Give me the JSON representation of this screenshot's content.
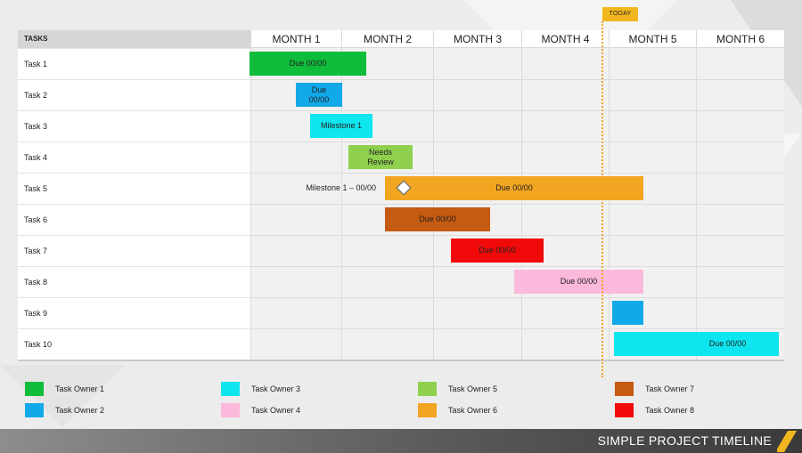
{
  "today_label": "TODAY",
  "header": {
    "tasks_label": "TASKS",
    "months": [
      "MONTH 1",
      "MONTH 2",
      "MONTH 3",
      "MONTH 4",
      "MONTH 5",
      "MONTH 6"
    ]
  },
  "tasks": [
    "Task 1",
    "Task 2",
    "Task 3",
    "Task 4",
    "Task 5",
    "Task 6",
    "Task 7",
    "Task 8",
    "Task 9",
    "Task 10"
  ],
  "bars": [
    {
      "task": "Task 1",
      "label": "Due 00/00",
      "color": "#0fbd3a"
    },
    {
      "task": "Task 2",
      "label": "Due 00/00",
      "color": "#12a9e9"
    },
    {
      "task": "Task 3",
      "label": "Milestone 1",
      "color": "#0ee5ee"
    },
    {
      "task": "Task 4",
      "label": "Needs Review",
      "color": "#8fd14f"
    },
    {
      "task": "Task 5",
      "label": "Due 00/00",
      "color": "#f2a521"
    },
    {
      "task": "Task 6",
      "label": "Due 00/00",
      "color": "#c55a11"
    },
    {
      "task": "Task 7",
      "label": "Due 00/00",
      "color": "#f00a0a"
    },
    {
      "task": "Task 8",
      "label": "Due 00/00",
      "color": "#fbb9dc"
    },
    {
      "task": "Task 9",
      "label": "",
      "color": "#12a9e9"
    },
    {
      "task": "Task 10",
      "label": "Due 00/00",
      "color": "#0ee5ee"
    }
  ],
  "milestone_label": "Milestone 1 – 00/00",
  "legend": [
    {
      "label": "Task Owner 1",
      "color": "#0fbd3a"
    },
    {
      "label": "Task Owner 2",
      "color": "#12a9e9"
    },
    {
      "label": "Task Owner 3",
      "color": "#0ee5ee"
    },
    {
      "label": "Task Owner 4",
      "color": "#fbb9dc"
    },
    {
      "label": "Task Owner 5",
      "color": "#8fd14f"
    },
    {
      "label": "Task Owner 6",
      "color": "#f2a521"
    },
    {
      "label": "Task Owner 7",
      "color": "#c55a11"
    },
    {
      "label": "Task Owner 8",
      "color": "#f00a0a"
    }
  ],
  "footer_title": "SIMPLE PROJECT TIMELINE",
  "accent_color": "#f2b71e"
}
